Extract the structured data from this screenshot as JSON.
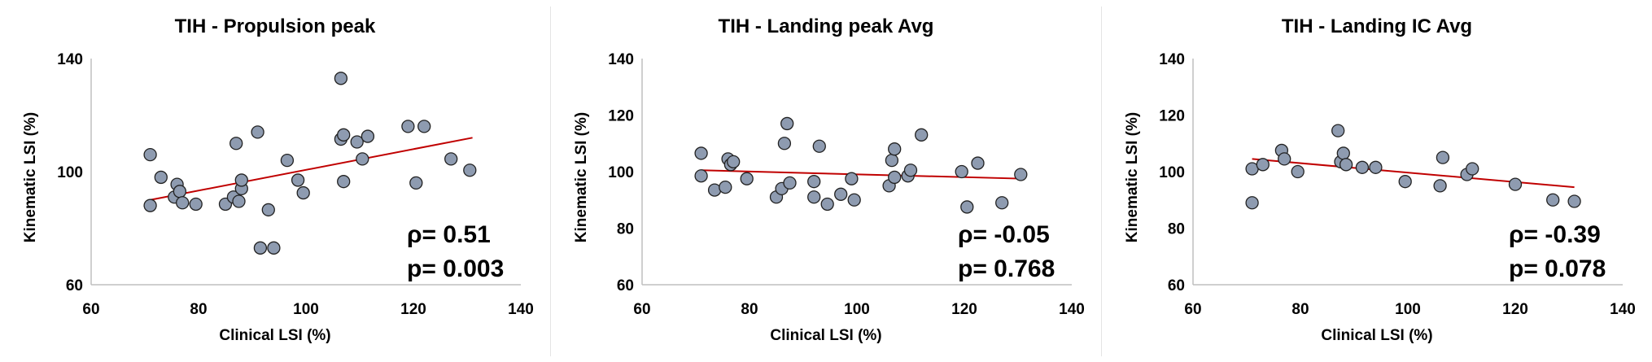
{
  "colors": {
    "marker_fill": "#8e9bb0",
    "marker_stroke": "#222222",
    "trendline": "#c00000",
    "axis": "#bfbfbf"
  },
  "chart_data": [
    {
      "type": "scatter",
      "title": "TIH - Propulsion peak",
      "xlabel": "Clinical LSI (%)",
      "ylabel": "Kinematic LSI (%)",
      "xlim": [
        60,
        140
      ],
      "ylim": [
        60,
        140
      ],
      "xticks": [
        "60",
        "80",
        "100",
        "120",
        "140"
      ],
      "yticks": [
        "60",
        "100",
        "140"
      ],
      "ytick_values": [
        60,
        100,
        140
      ],
      "rho": "ρ= 0.51",
      "p": "p= 0.003",
      "trendline": {
        "x": [
          71,
          131
        ],
        "y": [
          90,
          112
        ]
      },
      "points": [
        {
          "x": 71,
          "y": 106
        },
        {
          "x": 71,
          "y": 88
        },
        {
          "x": 73,
          "y": 98
        },
        {
          "x": 75.5,
          "y": 91
        },
        {
          "x": 76,
          "y": 95.5
        },
        {
          "x": 76.5,
          "y": 93
        },
        {
          "x": 77,
          "y": 89
        },
        {
          "x": 79.5,
          "y": 88.5
        },
        {
          "x": 85,
          "y": 88.5
        },
        {
          "x": 86.5,
          "y": 91
        },
        {
          "x": 87,
          "y": 110
        },
        {
          "x": 87.5,
          "y": 89.5
        },
        {
          "x": 88,
          "y": 94
        },
        {
          "x": 88,
          "y": 97
        },
        {
          "x": 91,
          "y": 114
        },
        {
          "x": 91.5,
          "y": 73
        },
        {
          "x": 93,
          "y": 86.5
        },
        {
          "x": 94,
          "y": 73
        },
        {
          "x": 96.5,
          "y": 104
        },
        {
          "x": 98.5,
          "y": 97
        },
        {
          "x": 99.5,
          "y": 92.5
        },
        {
          "x": 106.5,
          "y": 111.5
        },
        {
          "x": 106.5,
          "y": 133
        },
        {
          "x": 107,
          "y": 96.5
        },
        {
          "x": 107,
          "y": 113
        },
        {
          "x": 109.5,
          "y": 110.5
        },
        {
          "x": 110.5,
          "y": 104.5
        },
        {
          "x": 111.5,
          "y": 112.5
        },
        {
          "x": 119,
          "y": 116
        },
        {
          "x": 120.5,
          "y": 96
        },
        {
          "x": 122,
          "y": 116
        },
        {
          "x": 127,
          "y": 104.5
        },
        {
          "x": 130.5,
          "y": 100.5
        }
      ]
    },
    {
      "type": "scatter",
      "title": "TIH - Landing peak Avg",
      "xlabel": "Clinical LSI (%)",
      "ylabel": "Kinematic LSI (%)",
      "xlim": [
        60,
        140
      ],
      "ylim": [
        60,
        140
      ],
      "xticks": [
        "60",
        "80",
        "100",
        "120",
        "140"
      ],
      "yticks": [
        "60",
        "80",
        "100",
        "120",
        "140"
      ],
      "ytick_values": [
        60,
        80,
        100,
        120,
        140
      ],
      "rho": "ρ= -0.05",
      "p": "p= 0.768",
      "trendline": {
        "x": [
          71,
          131
        ],
        "y": [
          100.5,
          97.5
        ]
      },
      "points": [
        {
          "x": 71,
          "y": 106.5
        },
        {
          "x": 71,
          "y": 98.5
        },
        {
          "x": 73.5,
          "y": 93.5
        },
        {
          "x": 75.5,
          "y": 94.5
        },
        {
          "x": 76,
          "y": 104.5
        },
        {
          "x": 76.5,
          "y": 102.5
        },
        {
          "x": 77,
          "y": 103.5
        },
        {
          "x": 79.5,
          "y": 97.5
        },
        {
          "x": 85,
          "y": 91
        },
        {
          "x": 86,
          "y": 94
        },
        {
          "x": 86.5,
          "y": 110
        },
        {
          "x": 87,
          "y": 117
        },
        {
          "x": 87.5,
          "y": 96
        },
        {
          "x": 92,
          "y": 91
        },
        {
          "x": 92,
          "y": 96.5
        },
        {
          "x": 93,
          "y": 109
        },
        {
          "x": 94.5,
          "y": 88.5
        },
        {
          "x": 97,
          "y": 92
        },
        {
          "x": 99,
          "y": 97.5
        },
        {
          "x": 99.5,
          "y": 90
        },
        {
          "x": 106,
          "y": 95
        },
        {
          "x": 106.5,
          "y": 104
        },
        {
          "x": 107,
          "y": 108
        },
        {
          "x": 107,
          "y": 98
        },
        {
          "x": 109.5,
          "y": 98.5
        },
        {
          "x": 110,
          "y": 100.5
        },
        {
          "x": 112,
          "y": 113
        },
        {
          "x": 119.5,
          "y": 100
        },
        {
          "x": 120.5,
          "y": 87.5
        },
        {
          "x": 122.5,
          "y": 103
        },
        {
          "x": 127,
          "y": 89
        },
        {
          "x": 130.5,
          "y": 99
        }
      ]
    },
    {
      "type": "scatter",
      "title": "TIH - Landing IC Avg",
      "xlabel": "Clinical LSI (%)",
      "ylabel": "Kinematic LSI (%)",
      "xlim": [
        60,
        140
      ],
      "ylim": [
        60,
        140
      ],
      "xticks": [
        "60",
        "80",
        "100",
        "120",
        "140"
      ],
      "yticks": [
        "60",
        "80",
        "100",
        "120",
        "140"
      ],
      "ytick_values": [
        60,
        80,
        100,
        120,
        140
      ],
      "rho": "ρ= -0.39",
      "p": "p= 0.078",
      "trendline": {
        "x": [
          71,
          131
        ],
        "y": [
          104.5,
          94.5
        ]
      },
      "points": [
        {
          "x": 71,
          "y": 89
        },
        {
          "x": 71,
          "y": 101
        },
        {
          "x": 73,
          "y": 102.5
        },
        {
          "x": 76.5,
          "y": 107.5
        },
        {
          "x": 77,
          "y": 104.5
        },
        {
          "x": 79.5,
          "y": 100
        },
        {
          "x": 87,
          "y": 114.5
        },
        {
          "x": 87.5,
          "y": 103.5
        },
        {
          "x": 88,
          "y": 106.5
        },
        {
          "x": 88.5,
          "y": 102.5
        },
        {
          "x": 91.5,
          "y": 101.5
        },
        {
          "x": 94,
          "y": 101.5
        },
        {
          "x": 99.5,
          "y": 96.5
        },
        {
          "x": 106,
          "y": 95
        },
        {
          "x": 106.5,
          "y": 105
        },
        {
          "x": 111,
          "y": 99
        },
        {
          "x": 112,
          "y": 101
        },
        {
          "x": 120,
          "y": 95.5
        },
        {
          "x": 127,
          "y": 90
        },
        {
          "x": 131,
          "y": 89.5
        }
      ]
    }
  ]
}
